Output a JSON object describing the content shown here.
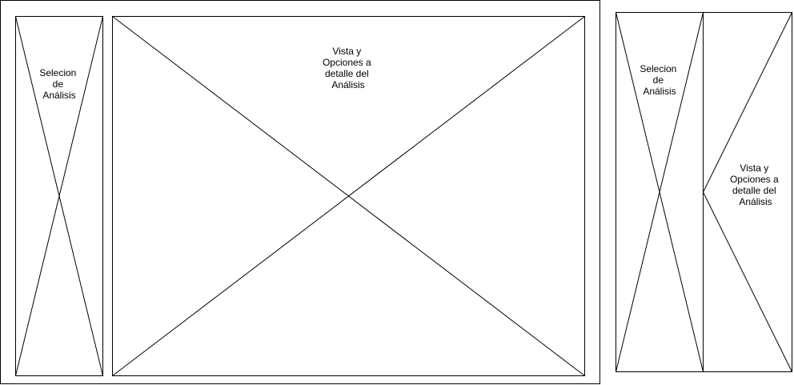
{
  "desktop": {
    "selection_label": [
      "Selecion",
      "de",
      "Análisis"
    ],
    "detail_label": [
      "Vista y",
      "Opciones a",
      "detalle del",
      "Análisis"
    ]
  },
  "mobile": {
    "selection_label": [
      "Selecion",
      "de",
      "Análisis"
    ],
    "detail_label": [
      "Vista y",
      "Opciones a",
      "detalle del",
      "Análisis"
    ]
  },
  "colors": {
    "stroke": "#000000",
    "background": "#ffffff"
  }
}
